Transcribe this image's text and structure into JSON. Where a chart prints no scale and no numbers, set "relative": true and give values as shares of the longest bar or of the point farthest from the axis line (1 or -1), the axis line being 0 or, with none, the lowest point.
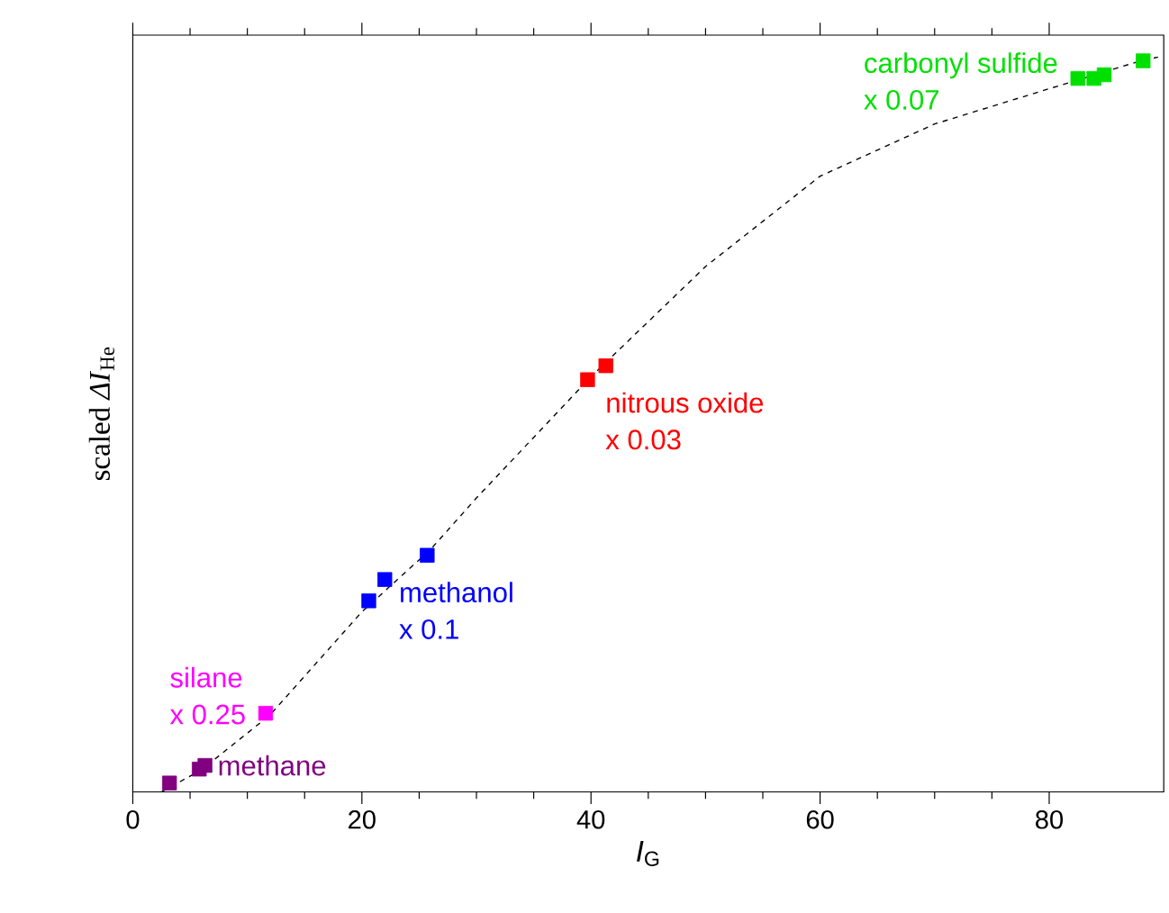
{
  "chart_data": {
    "type": "scatter",
    "xlabel": "*I*$_{G}$",
    "ylabel": "scaled *ΔI*$_{He}$",
    "relative": true,
    "marker": "square",
    "xlim": [
      0,
      90
    ],
    "xticks": [
      0,
      20,
      40,
      60,
      80
    ],
    "annotations": [
      "x 0.25",
      "x 0.1",
      "x 0.03",
      "x 0.07"
    ],
    "series": [
      {
        "name": "methane",
        "color": "#800080",
        "x": [
          3.2,
          5.8,
          6.3
        ],
        "values": [
          0.012,
          0.031,
          0.036
        ]
      },
      {
        "name": "silane",
        "color": "#ff00ff",
        "x": [
          11.6
        ],
        "values": [
          0.107
        ]
      },
      {
        "name": "methanol",
        "color": "#0000ff",
        "x": [
          20.6,
          22.0,
          25.7
        ],
        "values": [
          0.26,
          0.289,
          0.322
        ]
      },
      {
        "name": "nitrous oxide",
        "color": "#ff0000",
        "x": [
          39.7,
          41.3
        ],
        "values": [
          0.561,
          0.58
        ]
      },
      {
        "name": "carbonyl sulfide",
        "color": "#00e000",
        "x": [
          82.5,
          83.9,
          84.8,
          88.2
        ],
        "values": [
          0.971,
          0.971,
          0.976,
          0.995
        ]
      },
      {
        "type": "line",
        "color": "#000000",
        "line_style": "dashed",
        "marker": "none",
        "x": [
          2.5,
          6,
          12,
          20,
          26,
          30,
          40,
          50,
          60,
          70,
          80,
          88,
          89.5
        ],
        "values": [
          0,
          0.03,
          0.105,
          0.245,
          0.33,
          0.4,
          0.565,
          0.715,
          0.838,
          0.909,
          0.957,
          0.995,
          1
        ]
      }
    ]
  }
}
